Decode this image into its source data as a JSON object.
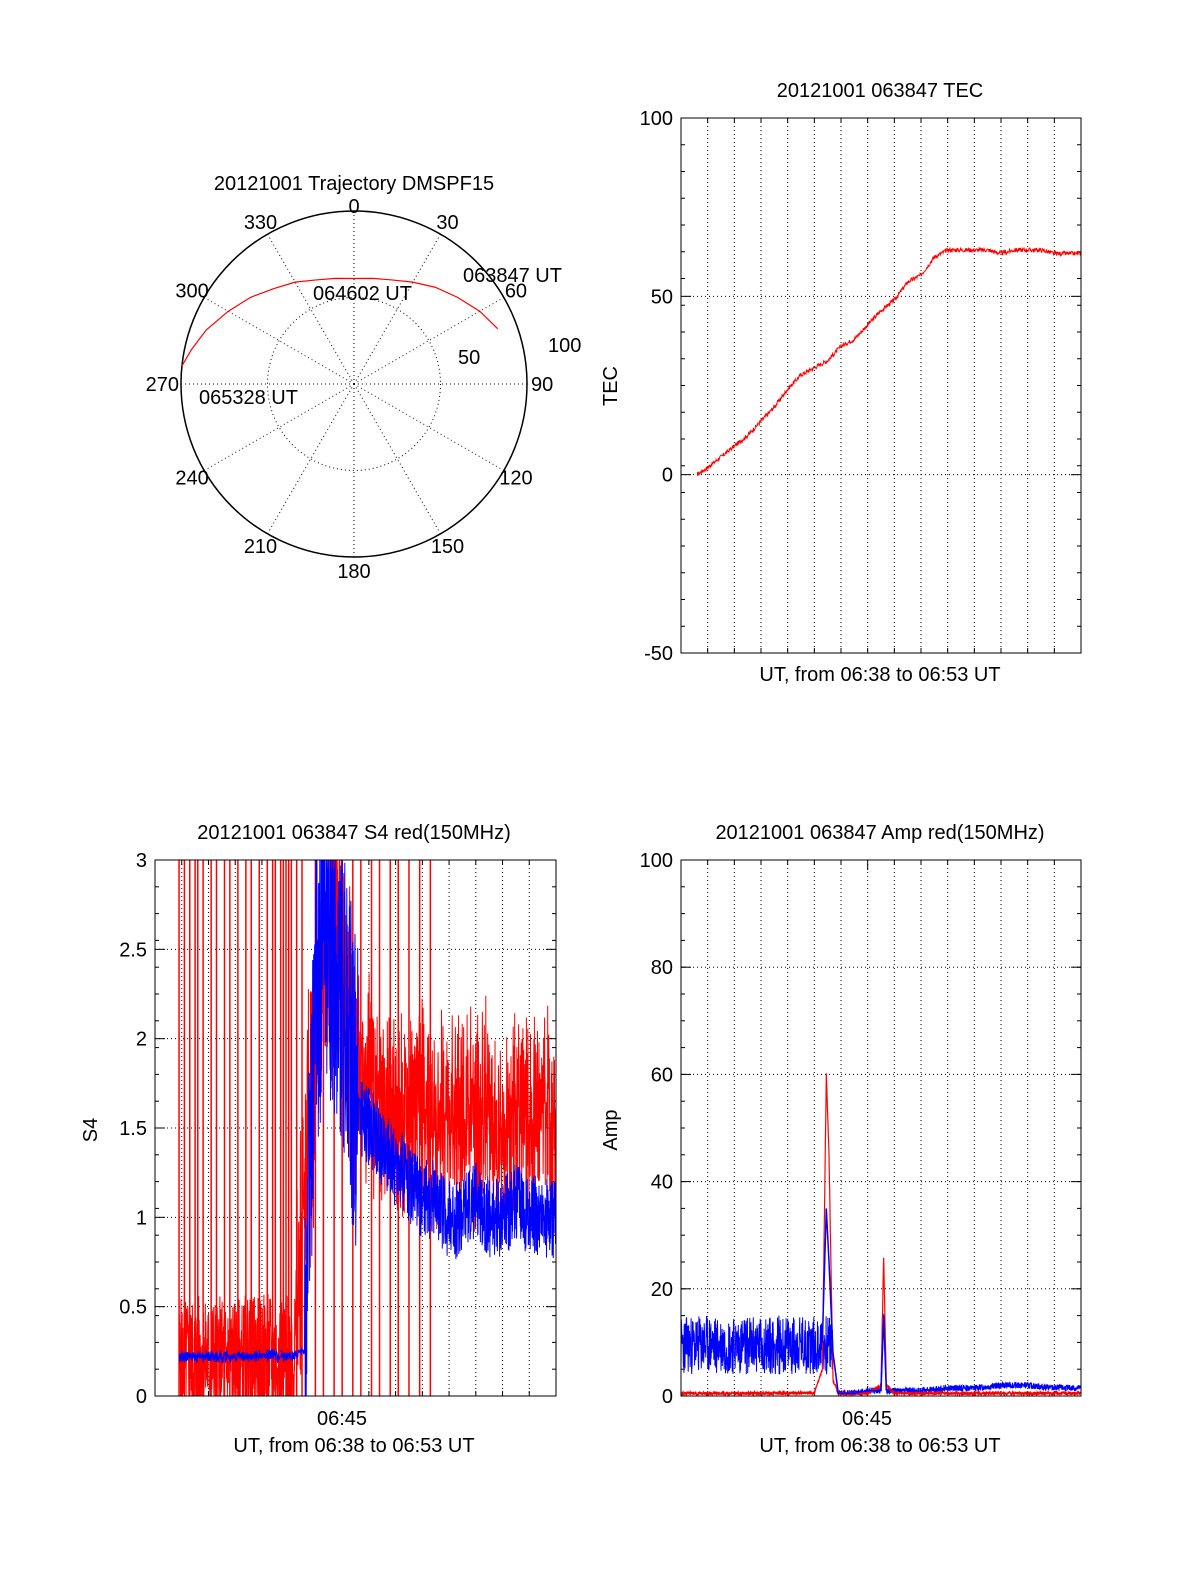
{
  "colors": {
    "red": "#ff0000",
    "blue": "#0000ff",
    "axis": "#000000",
    "grid": "#000000",
    "background": "#ffffff"
  },
  "chart_data": [
    {
      "id": "polar",
      "type": "polar",
      "title": "20121001 Trajectory DMSPF15",
      "angle_tick_labels": [
        "0",
        "30",
        "60",
        "90",
        "120",
        "150",
        "180",
        "210",
        "240",
        "270",
        "300",
        "330"
      ],
      "radius_tick_labels": [
        "50",
        "100"
      ],
      "track_annotations": [
        "063847 UT",
        "064602 UT",
        "065328 UT"
      ],
      "grid": true,
      "trajectory": {
        "color": "red",
        "points": [
          {
            "az": 69,
            "r": 89
          },
          {
            "az": 60,
            "r": 84
          },
          {
            "az": 50,
            "r": 78
          },
          {
            "az": 40,
            "r": 73
          },
          {
            "az": 30,
            "r": 68
          },
          {
            "az": 20,
            "r": 64
          },
          {
            "az": 10,
            "r": 62
          },
          {
            "az": 0,
            "r": 61
          },
          {
            "az": -10,
            "r": 62
          },
          {
            "az": -20,
            "r": 64
          },
          {
            "az": -30,
            "r": 68
          },
          {
            "az": -40,
            "r": 72
          },
          {
            "az": -50,
            "r": 78
          },
          {
            "az": -60,
            "r": 84
          },
          {
            "az": -70,
            "r": 91
          },
          {
            "az": -78,
            "r": 96
          },
          {
            "az": -84,
            "r": 100
          }
        ]
      }
    },
    {
      "id": "tec",
      "type": "line",
      "title": "20121001 063847 TEC",
      "xlabel": "UT, from 06:38 to 06:53 UT",
      "ylabel": "TEC",
      "ylim": [
        -50,
        100
      ],
      "yticks": [
        "100",
        "50",
        "0",
        "-50"
      ],
      "xlim_minutes": [
        0,
        15
      ],
      "grid": true,
      "series": [
        {
          "color": "red",
          "x_minutes": [
            0.6,
            1,
            1.5,
            2,
            2.5,
            3,
            3.5,
            4,
            4.5,
            5,
            5.5,
            6,
            6.5,
            7,
            7.5,
            8,
            8.5,
            9,
            9.5,
            10,
            10.5,
            11,
            11.5,
            12,
            12.5,
            13,
            13.5,
            14,
            14.5,
            15
          ],
          "y": [
            0,
            2,
            5,
            8,
            11,
            15,
            19,
            24,
            28,
            30,
            32,
            36,
            38,
            42,
            46,
            49,
            54,
            56,
            61,
            63,
            63,
            63,
            63,
            62,
            63,
            63,
            63,
            62,
            62,
            62
          ]
        }
      ]
    },
    {
      "id": "s4",
      "type": "line",
      "title": "20121001 063847 S4 red(150MHz)",
      "xlabel": "UT, from 06:38 to 06:53 UT",
      "ylabel": "S4",
      "ylim": [
        0,
        3
      ],
      "yticks": [
        "3",
        "2.5",
        "2",
        "1.5",
        "1",
        "0.5",
        "0"
      ],
      "xtick_label": "06:45",
      "xtick_minutes": 7,
      "xlim_minutes": [
        0,
        15
      ],
      "grid": true,
      "series": [
        {
          "name": "red",
          "color": "red",
          "x_minutes": [
            0.9,
            5.2,
            5.8,
            6.2,
            6.6,
            7.0,
            7.4,
            8.0,
            8.5,
            9.0,
            9.5,
            10,
            10.5,
            11,
            11.5,
            12,
            12.5,
            13,
            13.5,
            14,
            14.5,
            15
          ],
          "y": [
            0.2,
            0.22,
            1.5,
            2.3,
            2.8,
            2.5,
            2.0,
            1.8,
            1.6,
            1.5,
            1.6,
            1.7,
            1.5,
            1.6,
            1.5,
            1.6,
            1.6,
            1.5,
            1.6,
            1.5,
            1.6,
            1.5
          ],
          "spikes_minutes": [
            0.9,
            1.1,
            1.3,
            1.5,
            1.6,
            1.8,
            2.1,
            2.3,
            2.6,
            2.8,
            3.1,
            3.4,
            3.6,
            3.9,
            4.2,
            4.4,
            4.5,
            4.7,
            4.8,
            4.9,
            5.0,
            5.1,
            5.3,
            5.5,
            6.0,
            6.3,
            6.7,
            7.0,
            7.4,
            7.7,
            8.1,
            8.4,
            8.8,
            9.1,
            9.5,
            9.9,
            10.3
          ]
        },
        {
          "name": "blue",
          "color": "blue",
          "x_minutes": [
            0.9,
            2,
            3,
            4,
            5,
            5.6,
            6.0,
            6.4,
            6.8,
            7.2,
            7.6,
            8.0,
            8.5,
            9.0,
            9.5,
            10,
            10.5,
            11,
            11.5,
            12,
            12.5,
            13,
            13.5,
            14,
            14.5,
            15
          ],
          "y": [
            0.22,
            0.22,
            0.22,
            0.23,
            0.22,
            0.25,
            2.2,
            2.6,
            2.4,
            2.0,
            1.6,
            1.5,
            1.4,
            1.3,
            1.2,
            1.1,
            1.1,
            1.0,
            1.0,
            1.1,
            1.0,
            1.0,
            1.1,
            1.0,
            1.0,
            1.0
          ]
        }
      ]
    },
    {
      "id": "amp",
      "type": "line",
      "title": "20121001 063847 Amp red(150MHz)",
      "xlabel": "UT, from 06:38 to 06:53 UT",
      "ylabel": "Amp",
      "ylim": [
        0,
        100
      ],
      "yticks": [
        "100",
        "80",
        "60",
        "40",
        "20",
        "0"
      ],
      "xtick_label": "06:45",
      "xtick_minutes": 7,
      "xlim_minutes": [
        0,
        15
      ],
      "grid": true,
      "series": [
        {
          "name": "red",
          "color": "red",
          "x_minutes": [
            0,
            1,
            2,
            3,
            4,
            5,
            5.3,
            5.45,
            5.55,
            5.7,
            5.9,
            6.5,
            7.0,
            7.5,
            7.6,
            7.7,
            8,
            9,
            10,
            11,
            12,
            13,
            14,
            15
          ],
          "y": [
            0.5,
            0.5,
            0.5,
            0.5,
            0.5,
            0.6,
            5,
            60,
            45,
            3,
            0.5,
            0.5,
            0.5,
            2,
            26,
            2,
            0.5,
            0.5,
            0.5,
            0.5,
            0.5,
            0.5,
            0.5,
            0.5
          ]
        },
        {
          "name": "blue",
          "color": "blue",
          "x_minutes": [
            0,
            1,
            2,
            3,
            4,
            5,
            5.3,
            5.45,
            5.55,
            5.7,
            5.9,
            6.5,
            7.0,
            7.5,
            7.6,
            7.7,
            8,
            9,
            10,
            11,
            12,
            13,
            14,
            15
          ],
          "y": [
            10,
            9,
            9,
            8,
            8,
            8,
            10,
            35,
            25,
            8,
            0.5,
            0.5,
            1,
            1,
            15,
            1,
            1,
            1,
            1.5,
            1.5,
            2,
            2,
            1.5,
            1.5
          ],
          "noise_band_minutes": [
            0,
            5.7
          ],
          "noise_band_range": [
            4,
            15
          ]
        }
      ]
    }
  ]
}
